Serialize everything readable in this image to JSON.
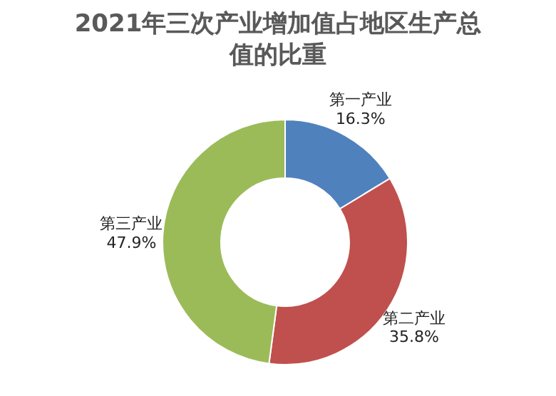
{
  "chart_data": {
    "type": "donut",
    "title": "2021年三次产业增加值占地区生产总值的比重",
    "categories": [
      "第一产业",
      "第二产业",
      "第三产业"
    ],
    "values": [
      16.3,
      35.8,
      47.9
    ],
    "value_labels": [
      "16.3%",
      "35.8%",
      "47.9%"
    ],
    "colors": [
      "#4f81bd",
      "#c0504d",
      "#9bbb59"
    ]
  }
}
